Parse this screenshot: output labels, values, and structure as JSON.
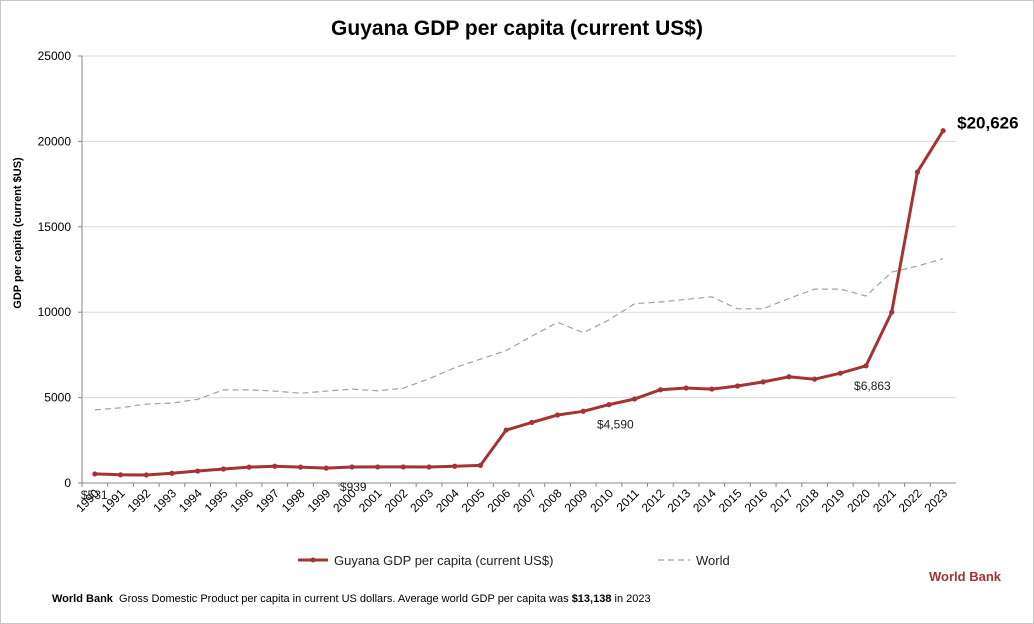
{
  "chart_data": {
    "type": "line",
    "title": "Guyana GDP per capita (current US$)",
    "ylabel": "GDP per capita (current $US)",
    "xlabel": "",
    "ylim": [
      0,
      25000
    ],
    "yticks": [
      0,
      5000,
      10000,
      15000,
      20000,
      25000
    ],
    "grid": true,
    "categories": [
      "1990",
      "1991",
      "1992",
      "1993",
      "1994",
      "1995",
      "1996",
      "1997",
      "1998",
      "1999",
      "2000",
      "2001",
      "2002",
      "2003",
      "2004",
      "2005",
      "2006",
      "2007",
      "2008",
      "2009",
      "2010",
      "2011",
      "2012",
      "2013",
      "2014",
      "2015",
      "2016",
      "2017",
      "2018",
      "2019",
      "2020",
      "2021",
      "2022",
      "2023"
    ],
    "series": [
      {
        "name": "Guyana GDP per capita (current US$)",
        "color": "#a53333",
        "style": "solid-markers",
        "values": [
          531,
          480,
          470,
          570,
          700,
          820,
          930,
          980,
          930,
          870,
          939,
          940,
          940,
          935,
          980,
          1030,
          3100,
          3550,
          3980,
          4200,
          4590,
          4920,
          5460,
          5560,
          5500,
          5680,
          5920,
          6220,
          6080,
          6430,
          6863,
          10000,
          18200,
          20626
        ]
      },
      {
        "name": "World",
        "color": "#a0a0a0",
        "style": "dashed",
        "values": [
          4280,
          4400,
          4620,
          4680,
          4900,
          5450,
          5450,
          5380,
          5260,
          5380,
          5500,
          5400,
          5550,
          6100,
          6750,
          7250,
          7750,
          8600,
          9400,
          8800,
          9550,
          10500,
          10600,
          10750,
          10900,
          10200,
          10200,
          10800,
          11350,
          11350,
          10950,
          12350,
          12700,
          13138
        ]
      }
    ],
    "annotations": [
      {
        "year": "1990",
        "text": "$531"
      },
      {
        "year": "2000",
        "text": "$939"
      },
      {
        "year": "2010",
        "text": "$4,590"
      },
      {
        "year": "2020",
        "text": "$6,863"
      },
      {
        "year": "2023",
        "text": "$20,626"
      }
    ],
    "legend_position": "bottom"
  },
  "brand": "World Bank",
  "footnote": {
    "source": "World Bank",
    "text": "Gross Domestic Product per capita in current US dollars.  Average world GDP per capita was",
    "value": "$13,138",
    "suffix": "in 2023"
  }
}
